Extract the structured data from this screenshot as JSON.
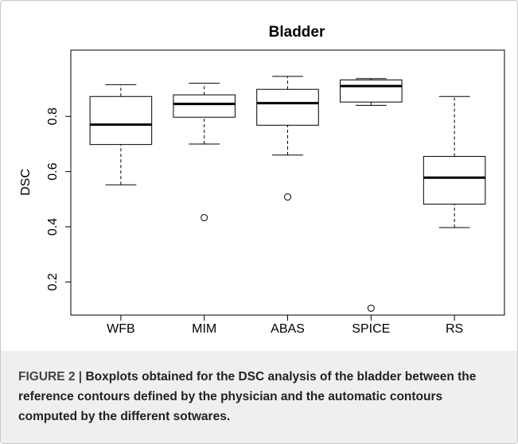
{
  "chart_data": {
    "type": "box",
    "title": "Bladder",
    "y_label": "DSC",
    "categories": [
      "WFB",
      "MIM",
      "ABAS",
      "SPICE",
      "RS"
    ],
    "whisker_low": [
      0.552,
      0.7,
      0.66,
      0.84,
      0.397
    ],
    "q1": [
      0.698,
      0.797,
      0.768,
      0.852,
      0.482
    ],
    "median": [
      0.77,
      0.845,
      0.848,
      0.91,
      0.578
    ],
    "q3": [
      0.872,
      0.878,
      0.898,
      0.932,
      0.655
    ],
    "whisker_high": [
      0.915,
      0.92,
      0.945,
      0.937,
      0.872
    ],
    "outliers": [
      [],
      [
        0.433
      ],
      [
        0.508
      ],
      [
        0.105
      ],
      []
    ],
    "ylim": [
      0.08,
      1.04
    ],
    "yticks": [
      0.2,
      0.4,
      0.6,
      0.8
    ],
    "color": "#000000"
  },
  "caption": {
    "label": "FIGURE 2 |",
    "text": "Boxplots obtained for the DSC analysis of the bladder between the reference contours defined by the physician and the automatic contours computed by the different sotwares."
  }
}
